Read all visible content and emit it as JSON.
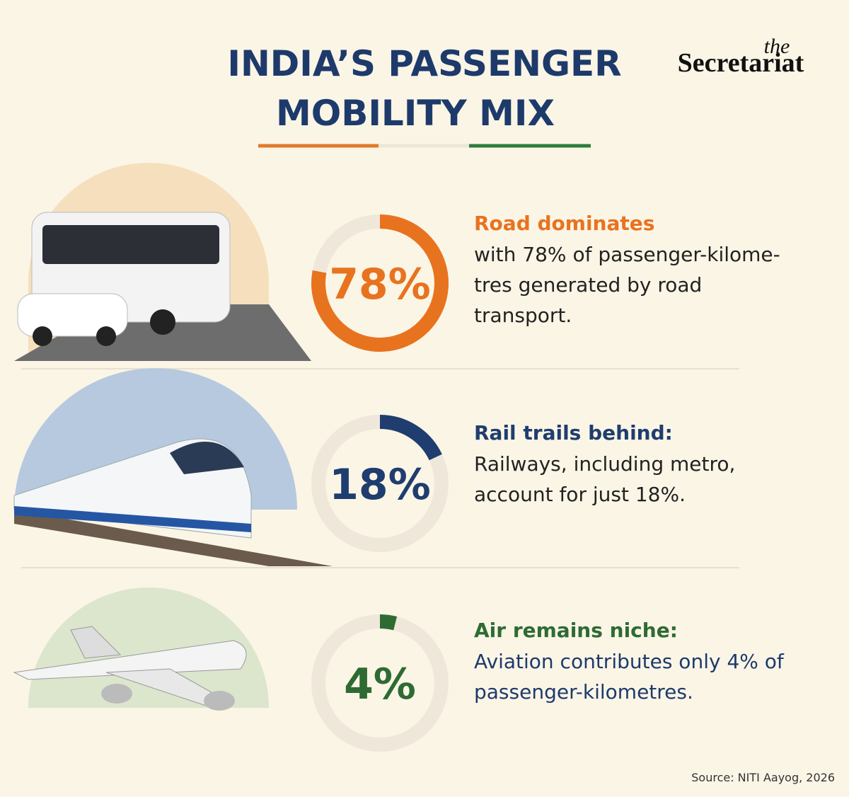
{
  "title": [
    "INDIA’S PASSENGER",
    "MOBILITY MIX"
  ],
  "brand": {
    "small": "the",
    "name": "Secretariat"
  },
  "source": "Source: NITI Aayog, 2026",
  "chart_data": [
    {
      "type": "donut",
      "title": "Road dominates",
      "values": [
        78
      ],
      "value_labels": [
        "78%"
      ],
      "color": "#e8731f",
      "lim": [
        0,
        100
      ],
      "text": [
        "with 78% of passenger-kilome-",
        "tres generated by road",
        "transport."
      ]
    },
    {
      "type": "donut",
      "title": "Rail trails behind:",
      "values": [
        18
      ],
      "value_labels": [
        "18%"
      ],
      "color": "#1f3d6e",
      "lim": [
        0,
        100
      ],
      "text": [
        "Railways, including metro,",
        "account for just 18%."
      ]
    },
    {
      "type": "donut",
      "title": "Air remains niche:",
      "values": [
        4
      ],
      "value_labels": [
        "4%"
      ],
      "color": "#2e6b33",
      "lim": [
        0,
        100
      ],
      "text": [
        "Aviation contributes only 4% of",
        "passenger-kilometres."
      ]
    }
  ]
}
